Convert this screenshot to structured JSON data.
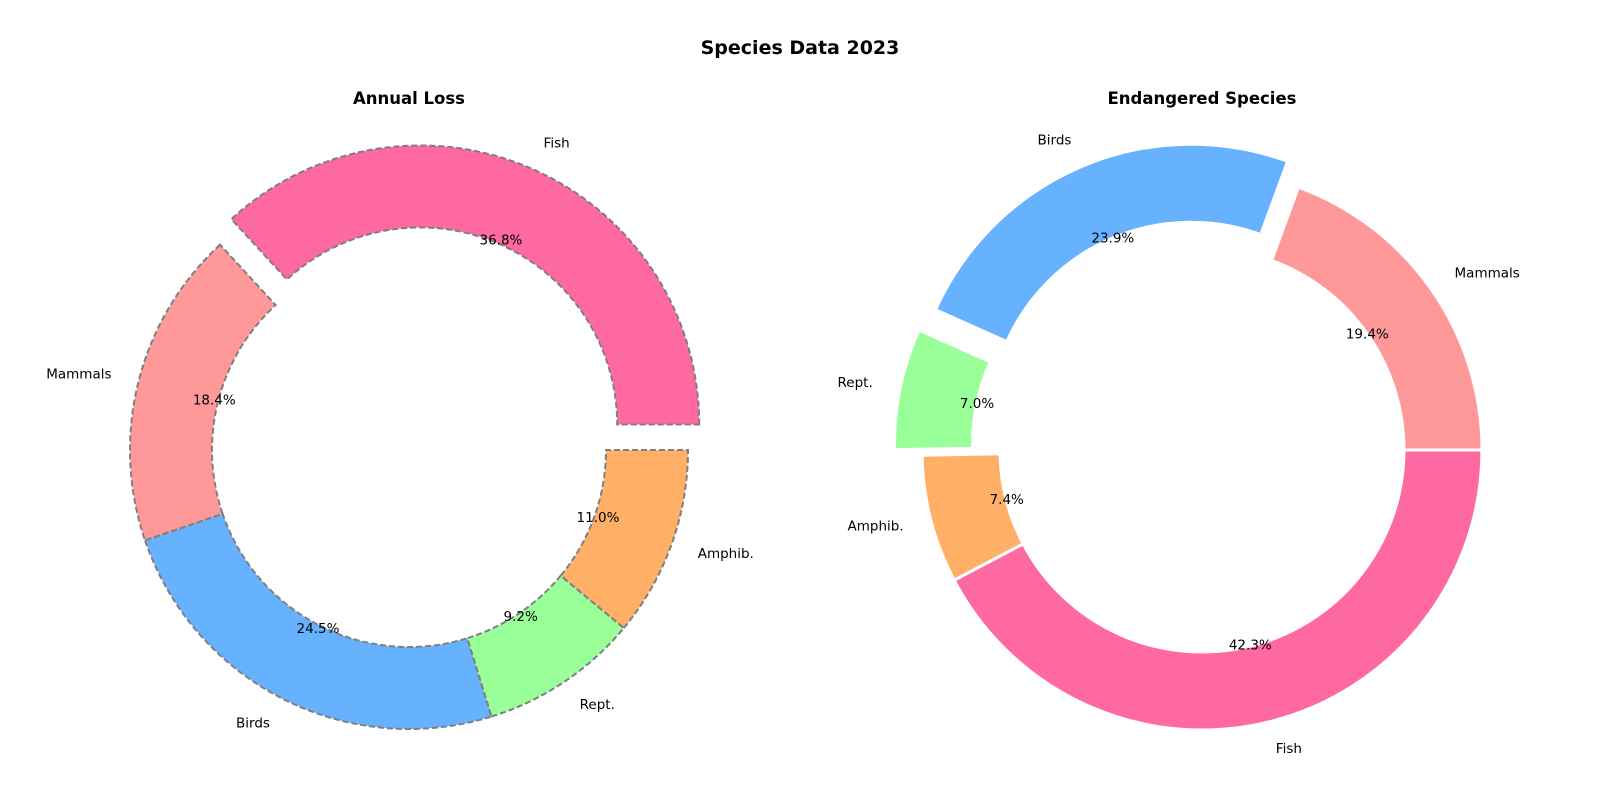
{
  "figure": {
    "title": "Species Data 2023"
  },
  "chart_data": [
    {
      "type": "donut",
      "title": "Annual Loss",
      "categories": [
        "Fish",
        "Mammals",
        "Birds",
        "Rept.",
        "Amphib."
      ],
      "values": [
        36.8,
        18.4,
        24.5,
        9.2,
        11.0
      ],
      "percent_labels": [
        "36.8%",
        "18.4%",
        "24.5%",
        "9.2%",
        "11.0%"
      ],
      "colors": [
        "#ff69a2",
        "#ff9999",
        "#66b2ff",
        "#99ff99",
        "#ffb066"
      ],
      "exploded": [
        true,
        false,
        false,
        false,
        false
      ],
      "edge_style": "dashed",
      "edge_color": "#7f7f7f",
      "legend": "none"
    },
    {
      "type": "donut",
      "title": "Endangered Species",
      "categories": [
        "Mammals",
        "Birds",
        "Rept.",
        "Amphib.",
        "Fish"
      ],
      "values": [
        19.4,
        23.9,
        7.0,
        7.4,
        42.3
      ],
      "percent_labels": [
        "19.4%",
        "23.9%",
        "7.0%",
        "7.4%",
        "42.3%"
      ],
      "colors": [
        "#ff9999",
        "#66b2ff",
        "#99ff99",
        "#ffb066",
        "#ff69a2"
      ],
      "exploded": [
        false,
        true,
        true,
        false,
        false
      ],
      "edge_style": "solid",
      "edge_color": "#ffffff",
      "legend": "none"
    }
  ]
}
